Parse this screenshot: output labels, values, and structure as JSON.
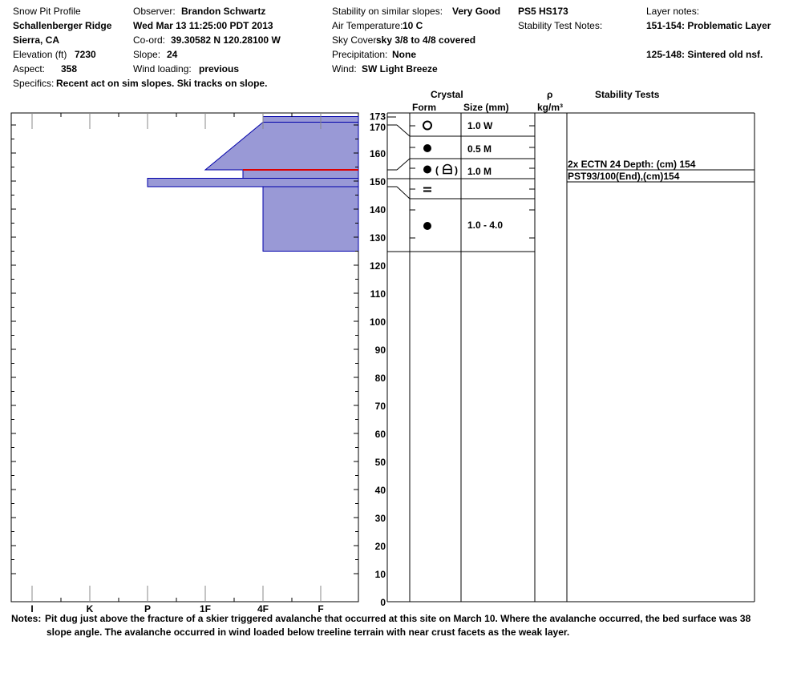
{
  "header": {
    "title": "Snow Pit Profile",
    "location": "Schallenberger Ridge",
    "region": "Sierra, CA",
    "elevation_label": "Elevation (ft)",
    "elevation": "7230",
    "aspect_label": "Aspect:",
    "aspect": "358",
    "specifics_label": "Specifics:",
    "specifics": "Recent act on sim slopes. Ski tracks on slope.",
    "observer_label": "Observer:",
    "observer": "Brandon Schwartz",
    "datetime": "Wed Mar 13 11:25:00 PDT 2013",
    "coord_label": "Co-ord:",
    "coord": "39.30582 N 120.28100 W",
    "slope_label": "Slope:",
    "slope": "24",
    "wind_loading_label": "Wind loading:",
    "wind_loading": "previous",
    "stability_label": "Stability on similar slopes:",
    "stability": "Very Good",
    "air_temp_label": "Air Temperature:",
    "air_temp": "10 C",
    "sky_label": "Sky Cover:",
    "sky": "sky 3/8 to 4/8 covered",
    "precip_label": "Precipitation:",
    "precip": "None",
    "wind_label": "Wind:",
    "wind": "SW Light Breeze",
    "ps_hs": "PS5 HS173",
    "stability_notes_label": "Stability Test Notes:",
    "layer_notes_label": "Layer notes:",
    "layer_notes": [
      "151-154: Problematic Layer",
      "125-148: Sintered old nsf."
    ]
  },
  "columns": {
    "crystal": "Crystal",
    "form": "Form",
    "size": "Size (mm)",
    "rho": "ρ",
    "rho_unit": "kg/m³",
    "stability_tests": "Stability Tests"
  },
  "chart_data": {
    "type": "snow-profile",
    "y_axis": {
      "range": [
        0,
        173
      ],
      "ticks": [
        0,
        10,
        20,
        30,
        40,
        50,
        60,
        70,
        80,
        90,
        100,
        110,
        120,
        130,
        140,
        150,
        160,
        170,
        173
      ]
    },
    "x_axis": {
      "categories": [
        "I",
        "K",
        "P",
        "1F",
        "4F",
        "F"
      ]
    },
    "hardness_layers": [
      {
        "top": 173,
        "bottom": 171,
        "hardness_top": "4F",
        "hardness_bottom": "4F"
      },
      {
        "top": 171,
        "bottom": 154,
        "hardness_top": "4F",
        "hardness_bottom": "1F"
      },
      {
        "top": 154,
        "bottom": 151,
        "hardness_top": "1F+",
        "hardness_bottom": "1F+"
      },
      {
        "top": 151,
        "bottom": 148,
        "hardness_top": "P",
        "hardness_bottom": "P"
      },
      {
        "top": 148,
        "bottom": 125,
        "hardness_top": "4F",
        "hardness_bottom": "4F"
      }
    ],
    "critical_layer": 154,
    "colors": {
      "fill": "#9999d6",
      "outline": "#0000aa",
      "critical": "#dd0000"
    },
    "crystal_layers": [
      {
        "top": 173,
        "bottom": 170,
        "form": "open-circle-icon",
        "size": "1.0 W"
      },
      {
        "top": 170,
        "bottom": 154,
        "form": "filled-circle-icon",
        "size": "0.5 M"
      },
      {
        "top": 154,
        "bottom": 151,
        "form": "filled-circle-melt-freeze-icon",
        "size": "1.0 M"
      },
      {
        "top": 151,
        "bottom": 148,
        "form": "equals-icon",
        "size": ""
      },
      {
        "top": 148,
        "bottom": 125,
        "form": "filled-circle-icon",
        "size": "1.0 - 4.0"
      }
    ],
    "stability_tests": [
      "2x ECTN 24   Depth: (cm) 154",
      "PST93/100(End),(cm)154"
    ]
  },
  "notes_label": "Notes:",
  "notes": [
    "Pit dug just above the fracture of a skier triggered avalanche that occurred at this site on March 10. Where the avalanche occurred, the bed surface was 38",
    "slope angle. The avalanche occurred in wind loaded below treeline terrain with near crust facets as the weak layer."
  ]
}
